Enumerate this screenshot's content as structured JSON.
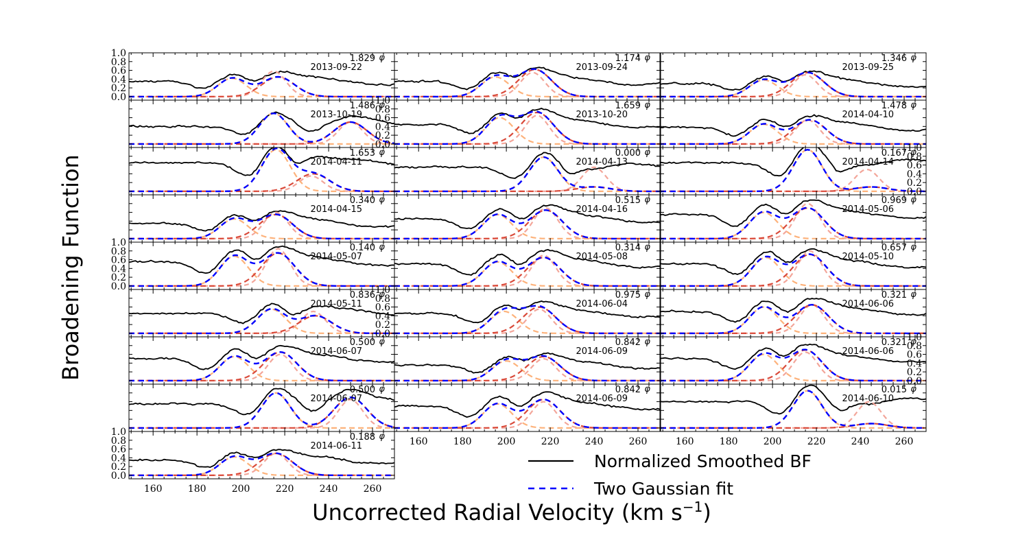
{
  "chart_data": {
    "type": "line",
    "xlabel": "Uncorrected Radial Velocity (km s",
    "xlabel_sup": "−1",
    "xlabel_close": ")",
    "ylabel": "Broadening Function",
    "xlim": [
      149,
      270
    ],
    "ylim": [
      -0.08,
      1.0
    ],
    "x_ticks": [
      "160",
      "180",
      "200",
      "220",
      "240",
      "260"
    ],
    "y_ticks": [
      "0.0",
      "0.2",
      "0.4",
      "0.6",
      "0.8",
      "1.0"
    ],
    "phi_symbol": "φ",
    "legend": {
      "placement": "lower-right",
      "entries": [
        "Normalized Smoothed BF",
        "Two Gaussian fit"
      ]
    },
    "colors": {
      "bf": "#000000",
      "fit": "#0000ff",
      "g1": "#fdb27b",
      "g2": "#d94a3a",
      "g3": "#f3a69a"
    },
    "panels": [
      {
        "phase": "1.829",
        "date": "2013-09-22",
        "c1": 196,
        "c2": 217,
        "a1": 0.42,
        "a2": 0.45,
        "a3": 0.58,
        "v3": 215,
        "base": 0.35,
        "ylab": true
      },
      {
        "phase": "1.174",
        "date": "2013-09-24",
        "c1": 195,
        "c2": 213,
        "a1": 0.45,
        "a2": 0.62,
        "a3": 0.55,
        "v3": 212,
        "base": 0.35,
        "ylab": false
      },
      {
        "phase": "1.346",
        "date": "2013-09-25",
        "c1": 196,
        "c2": 216,
        "a1": 0.38,
        "a2": 0.55,
        "a3": 0.5,
        "v3": 215,
        "base": 0.3,
        "ylab": false
      },
      {
        "phase": "1.486",
        "date": "2013-10-19",
        "c1": 215,
        "c2": 250,
        "a1": 0.7,
        "a2": 0.5,
        "a3": 0.5,
        "v3": 250,
        "base": 0.4,
        "ylab": false,
        "ylab_right": true
      },
      {
        "phase": "1.659",
        "date": "2013-10-20",
        "c1": 197,
        "c2": 214,
        "a1": 0.6,
        "a2": 0.72,
        "a3": 0.65,
        "v3": 214,
        "base": 0.45,
        "ylab": false
      },
      {
        "phase": "1.478",
        "date": "2014-04-10",
        "c1": 196,
        "c2": 217,
        "a1": 0.45,
        "a2": 0.55,
        "a3": 0.55,
        "v3": 216,
        "base": 0.38,
        "ylab": false
      },
      {
        "phase": "1.653",
        "date": "2014-04-11",
        "c1": 216,
        "c2": 233,
        "a1": 0.95,
        "a2": 0.4,
        "a3": 0.35,
        "v3": 232,
        "base": 0.65,
        "ylab": false
      },
      {
        "phase": "0.000",
        "date": "2014-04-13",
        "c1": 217,
        "c2": 240,
        "a1": 0.78,
        "a2": 0.1,
        "a3": 0.55,
        "v3": 240,
        "base": 0.55,
        "ylab": false
      },
      {
        "phase": "0.167",
        "date": "2014-04-14",
        "c1": 216,
        "c2": 245,
        "a1": 0.95,
        "a2": 0.1,
        "a3": 0.5,
        "v3": 243,
        "base": 0.65,
        "ylab": false,
        "ylab_right": true
      },
      {
        "phase": "0.340",
        "date": "2014-04-15",
        "c1": 197,
        "c2": 216,
        "a1": 0.45,
        "a2": 0.55,
        "a3": 0.6,
        "v3": 216,
        "base": 0.35,
        "ylab": false
      },
      {
        "phase": "0.515",
        "date": "2014-04-16",
        "c1": 196,
        "c2": 218,
        "a1": 0.55,
        "a2": 0.65,
        "a3": 0.7,
        "v3": 218,
        "base": 0.45,
        "ylab": false
      },
      {
        "phase": "0.969",
        "date": "2014-05-06",
        "c1": 196,
        "c2": 216,
        "a1": 0.6,
        "a2": 0.7,
        "a3": 0.8,
        "v3": 216,
        "base": 0.55,
        "ylab": false
      },
      {
        "phase": "0.140",
        "date": "2014-05-07",
        "c1": 197,
        "c2": 217,
        "a1": 0.68,
        "a2": 0.75,
        "a3": 0.85,
        "v3": 217,
        "base": 0.55,
        "ylab": true
      },
      {
        "phase": "0.314",
        "date": "2014-05-08",
        "c1": 196,
        "c2": 217,
        "a1": 0.55,
        "a2": 0.65,
        "a3": 0.7,
        "v3": 217,
        "base": 0.5,
        "ylab": false
      },
      {
        "phase": "0.657",
        "date": "2014-05-10",
        "c1": 197,
        "c2": 217,
        "a1": 0.65,
        "a2": 0.72,
        "a3": 0.8,
        "v3": 217,
        "base": 0.5,
        "ylab": false
      },
      {
        "phase": "0.836",
        "date": "2014-05-11",
        "c1": 214,
        "c2": 234,
        "a1": 0.55,
        "a2": 0.4,
        "a3": 0.5,
        "v3": 233,
        "base": 0.45,
        "ylab": false,
        "ylab_right": true
      },
      {
        "phase": "0.975",
        "date": "2014-06-04",
        "c1": 199,
        "c2": 215,
        "a1": 0.5,
        "a2": 0.6,
        "a3": 0.55,
        "v3": 215,
        "base": 0.45,
        "ylab": false
      },
      {
        "phase": "0.321",
        "date": "2014-06-06",
        "c1": 196,
        "c2": 218,
        "a1": 0.6,
        "a2": 0.65,
        "a3": 0.65,
        "v3": 218,
        "base": 0.5,
        "ylab": false
      },
      {
        "phase": "0.500",
        "date": "2014-06-07",
        "c1": 197,
        "c2": 218,
        "a1": 0.55,
        "a2": 0.65,
        "a3": 0.6,
        "v3": 218,
        "base": 0.5,
        "ylab": false
      },
      {
        "phase": "0.842",
        "date": "2014-06-09",
        "c1": 200,
        "c2": 217,
        "a1": 0.45,
        "a2": 0.55,
        "a3": 0.5,
        "v3": 217,
        "base": 0.35,
        "ylab": false
      },
      {
        "phase": "0.321",
        "date": "2014-06-06",
        "c1": 196,
        "c2": 215,
        "a1": 0.6,
        "a2": 0.7,
        "a3": 0.65,
        "v3": 215,
        "base": 0.5,
        "ylab": false,
        "ylab_right": true
      },
      {
        "phase": "0.500",
        "date": "2014-06-07",
        "c1": 216,
        "c2": 250,
        "a1": 0.8,
        "a2": 0.7,
        "a3": 0.65,
        "v3": 250,
        "base": 0.55,
        "ylab": false
      },
      {
        "phase": "0.842",
        "date": "2014-06-09",
        "c1": 196,
        "c2": 217,
        "a1": 0.55,
        "a2": 0.65,
        "a3": 0.6,
        "v3": 217,
        "base": 0.5,
        "ylab": false
      },
      {
        "phase": "0.015",
        "date": "2014-06-10",
        "c1": 216,
        "c2": 245,
        "a1": 0.85,
        "a2": 0.1,
        "a3": 0.6,
        "v3": 244,
        "base": 0.6,
        "ylab": false
      },
      {
        "phase": "0.188",
        "date": "2014-06-11",
        "c1": 197,
        "c2": 216,
        "a1": 0.42,
        "a2": 0.5,
        "a3": 0.5,
        "v3": 216,
        "base": 0.35,
        "ylab": true
      }
    ]
  }
}
